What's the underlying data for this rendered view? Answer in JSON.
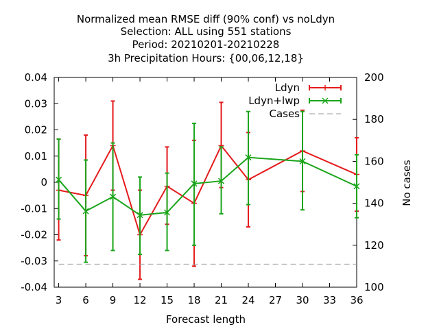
{
  "chart_data": {
    "type": "line",
    "title_lines": [
      "Normalized mean RMSE diff (90% conf) vs noLdyn",
      "Selection: ALL using   551 stations",
      "Period: 20210201-20210228",
      "3h Precipitation   Hours: {00,06,12,18}"
    ],
    "xlabel": "Forecast length",
    "ylabel": "",
    "y2label": "No cases",
    "xlim": [
      2.5,
      36
    ],
    "ylim": [
      -0.04,
      0.04
    ],
    "y2lim": [
      100,
      200
    ],
    "xticks": [
      3,
      6,
      9,
      12,
      15,
      18,
      21,
      24,
      27,
      30,
      33,
      36
    ],
    "yticks": [
      -0.04,
      -0.03,
      -0.02,
      -0.01,
      0,
      0.01,
      0.02,
      0.03,
      0.04
    ],
    "ytick_labels": [
      "-0.04",
      "-0.03",
      "-0.02",
      "-0.01",
      "0",
      "0.01",
      "0.02",
      "0.03",
      "0.04"
    ],
    "y2ticks": [
      100,
      120,
      140,
      160,
      180,
      200
    ],
    "y2tick_labels": [
      "100",
      "120",
      "140",
      "160",
      "180",
      "200"
    ],
    "legend_position": "top-right",
    "series": [
      {
        "name": "Ldyn",
        "color": "#e41a1c",
        "marker": "plus",
        "x": [
          3,
          6,
          9,
          12,
          15,
          18,
          21,
          24,
          30,
          36
        ],
        "y": [
          -0.003,
          -0.005,
          0.014,
          -0.02,
          -0.0015,
          -0.008,
          0.014,
          0.001,
          0.012,
          0.003
        ],
        "err_low": [
          -0.022,
          -0.028,
          -0.003,
          -0.037,
          -0.016,
          -0.032,
          -0.002,
          -0.017,
          -0.0035,
          -0.011
        ],
        "err_high": [
          0.0165,
          0.018,
          0.031,
          -0.003,
          0.0135,
          0.016,
          0.0305,
          0.019,
          0.0275,
          0.017
        ]
      },
      {
        "name": "Ldyn+lwp",
        "color": "#1aa51a",
        "marker": "x",
        "x": [
          3,
          6,
          9,
          12,
          15,
          18,
          21,
          24,
          30,
          36
        ],
        "y": [
          0.001,
          -0.011,
          -0.0055,
          -0.0125,
          -0.0115,
          -0.0005,
          0.0005,
          0.0095,
          0.008,
          -0.0015
        ],
        "err_low": [
          -0.014,
          -0.0305,
          -0.026,
          -0.0275,
          -0.026,
          -0.024,
          -0.012,
          -0.0085,
          -0.0105,
          -0.0135
        ],
        "err_high": [
          0.0165,
          0.0085,
          0.015,
          0.002,
          0.0035,
          0.0225,
          0.0135,
          0.027,
          0.027,
          0.0105
        ]
      },
      {
        "name": "Cases",
        "color": "#999999",
        "dash": true,
        "axis": "y2",
        "x": [
          3,
          36
        ],
        "y": [
          111,
          111
        ]
      }
    ]
  }
}
